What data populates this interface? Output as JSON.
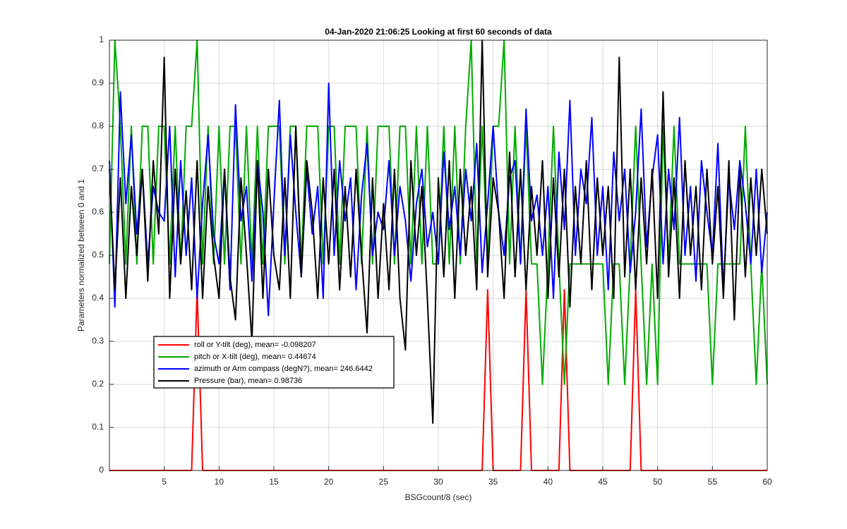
{
  "chart_data": {
    "type": "line",
    "title": "04-Jan-2020 21:06:25 Looking at first 60 seconds of data",
    "xlabel": "BSGcount/8 (sec)",
    "ylabel": "Parameters normalized between 0 and 1",
    "xlim": [
      0,
      60
    ],
    "ylim": [
      0,
      1
    ],
    "xticks": [
      5,
      10,
      15,
      20,
      25,
      30,
      35,
      40,
      45,
      50,
      55,
      60
    ],
    "yticks": [
      0,
      0.1,
      0.2,
      0.3,
      0.4,
      0.5,
      0.6,
      0.7,
      0.8,
      0.9,
      1
    ],
    "grid": true,
    "x": [
      0,
      0.5,
      1,
      1.5,
      2,
      2.5,
      3,
      3.5,
      4,
      4.5,
      5,
      5.5,
      6,
      6.5,
      7,
      7.5,
      8,
      8.5,
      9,
      9.5,
      10,
      10.5,
      11,
      11.5,
      12,
      12.5,
      13,
      13.5,
      14,
      14.5,
      15,
      15.5,
      16,
      16.5,
      17,
      17.5,
      18,
      18.5,
      19,
      19.5,
      20,
      20.5,
      21,
      21.5,
      22,
      22.5,
      23,
      23.5,
      24,
      24.5,
      25,
      25.5,
      26,
      26.5,
      27,
      27.5,
      28,
      28.5,
      29,
      29.5,
      30,
      30.5,
      31,
      31.5,
      32,
      32.5,
      33,
      33.5,
      34,
      34.5,
      35,
      35.5,
      36,
      36.5,
      37,
      37.5,
      38,
      38.5,
      39,
      39.5,
      40,
      40.5,
      41,
      41.5,
      42,
      42.5,
      43,
      43.5,
      44,
      44.5,
      45,
      45.5,
      46,
      46.5,
      47,
      47.5,
      48,
      48.5,
      49,
      49.5,
      50,
      50.5,
      51,
      51.5,
      52,
      52.5,
      53,
      53.5,
      54,
      54.5,
      55,
      55.5,
      56,
      56.5,
      57,
      57.5,
      58,
      58.5,
      59,
      59.5,
      60
    ],
    "series": [
      {
        "name": "roll or Y-tilt (deg), mean= -0.098207",
        "color": "#ff0000",
        "values": [
          0,
          0,
          0,
          0,
          0,
          0,
          0,
          0,
          0,
          0,
          0,
          0,
          0,
          0,
          0,
          0,
          0.42,
          0,
          0,
          0,
          0,
          0,
          0,
          0,
          0,
          0,
          0,
          0,
          0,
          0,
          0,
          0,
          0,
          0,
          0,
          0,
          0,
          0,
          0,
          0,
          0,
          0,
          0,
          0,
          0,
          0,
          0,
          0,
          0,
          0,
          0,
          0,
          0,
          0,
          0,
          0,
          0,
          0,
          0,
          0,
          0,
          0,
          0,
          0,
          0,
          0,
          0,
          0,
          0,
          0.42,
          0,
          0,
          0,
          0,
          0,
          0,
          0.42,
          0,
          0,
          0,
          0,
          0,
          0,
          0.42,
          0,
          0,
          0,
          0,
          0,
          0,
          0,
          0,
          0,
          0,
          0,
          0,
          0.42,
          0,
          0,
          0,
          0,
          0,
          0,
          0,
          0,
          0,
          0,
          0,
          0,
          0,
          0,
          0,
          0,
          0,
          0,
          0,
          0,
          0,
          0,
          0,
          0
        ]
      },
      {
        "name": "pitch or X-tilt (deg), mean= 0.44674",
        "color": "#00aa00",
        "values": [
          0.48,
          1.0,
          0.8,
          0.48,
          0.8,
          0.48,
          0.8,
          0.8,
          0.48,
          0.8,
          0.8,
          0.48,
          0.8,
          0.48,
          0.8,
          0.8,
          1.0,
          0.48,
          0.8,
          0.48,
          0.8,
          0.48,
          0.8,
          0.8,
          0.48,
          0.8,
          0.48,
          0.8,
          0.48,
          0.8,
          0.8,
          0.8,
          0.48,
          0.8,
          0.8,
          0.48,
          0.8,
          0.8,
          0.8,
          0.48,
          0.8,
          0.8,
          0.48,
          0.8,
          0.8,
          0.8,
          0.48,
          0.8,
          0.48,
          0.8,
          0.8,
          0.8,
          0.48,
          0.8,
          0.8,
          0.48,
          0.8,
          0.48,
          0.8,
          0.48,
          0.48,
          0.8,
          0.48,
          0.8,
          0.48,
          0.8,
          1.0,
          0.48,
          0.8,
          0.48,
          0.8,
          0.8,
          1.0,
          0.48,
          0.8,
          0.48,
          0.8,
          0.48,
          0.48,
          0.2,
          0.48,
          0.8,
          0.48,
          0.2,
          0.48,
          0.48,
          0.48,
          0.48,
          0.48,
          0.48,
          0.48,
          0.2,
          0.48,
          0.48,
          0.2,
          0.48,
          0.8,
          0.48,
          0.2,
          0.48,
          0.2,
          0.8,
          0.48,
          0.8,
          0.48,
          0.48,
          0.48,
          0.48,
          0.48,
          0.48,
          0.2,
          0.48,
          0.48,
          0.48,
          0.48,
          0.48,
          0.8,
          0.48,
          0.2,
          0.48,
          0.2
        ]
      },
      {
        "name": "azimuth or Arm compass (degN?), mean= 246.6442",
        "color": "#0000ff",
        "values": [
          0.72,
          0.38,
          0.88,
          0.62,
          0.78,
          0.55,
          0.7,
          0.48,
          0.66,
          0.6,
          0.58,
          0.8,
          0.45,
          0.72,
          0.5,
          0.68,
          0.4,
          0.62,
          0.78,
          0.55,
          0.48,
          0.7,
          0.42,
          0.85,
          0.58,
          0.66,
          0.44,
          0.72,
          0.6,
          0.36,
          0.62,
          0.86,
          0.5,
          0.78,
          0.6,
          0.45,
          0.7,
          0.55,
          0.66,
          0.4,
          0.9,
          0.5,
          0.72,
          0.58,
          0.68,
          0.42,
          0.64,
          0.76,
          0.5,
          0.6,
          0.56,
          0.72,
          0.5,
          0.66,
          0.58,
          0.44,
          0.62,
          0.7,
          0.52,
          0.6,
          0.48,
          0.74,
          0.56,
          0.66,
          0.5,
          0.7,
          0.58,
          0.76,
          0.46,
          0.62,
          0.8,
          0.6,
          0.5,
          0.68,
          0.72,
          0.48,
          0.84,
          0.58,
          0.64,
          0.5,
          0.66,
          0.4,
          0.74,
          0.56,
          0.86,
          0.5,
          0.7,
          0.62,
          0.82,
          0.5,
          0.66,
          0.42,
          0.74,
          0.58,
          0.7,
          0.46,
          0.6,
          0.84,
          0.52,
          0.68,
          0.78,
          0.48,
          0.7,
          0.56,
          0.82,
          0.5,
          0.66,
          0.44,
          0.72,
          0.6,
          0.5,
          0.76,
          0.42,
          0.68,
          0.56,
          0.72,
          0.62,
          0.48,
          0.7,
          0.46,
          0.6
        ]
      },
      {
        "name": "Pressure (bar), mean= 0.98736",
        "color": "#000000",
        "values": [
          0.7,
          0.42,
          0.68,
          0.4,
          0.66,
          0.5,
          0.7,
          0.44,
          0.72,
          0.55,
          0.96,
          0.4,
          0.7,
          0.48,
          0.65,
          0.42,
          0.72,
          0.4,
          0.66,
          0.5,
          0.4,
          0.7,
          0.45,
          0.35,
          0.68,
          0.5,
          0.3,
          0.72,
          0.4,
          0.7,
          0.5,
          0.42,
          0.68,
          0.4,
          0.8,
          0.45,
          0.72,
          0.6,
          0.4,
          0.68,
          0.48,
          0.7,
          0.42,
          0.66,
          0.45,
          0.7,
          0.5,
          0.32,
          0.68,
          0.4,
          0.62,
          0.42,
          0.7,
          0.4,
          0.28,
          0.72,
          0.5,
          0.66,
          0.4,
          0.11,
          0.68,
          0.45,
          0.72,
          0.4,
          0.7,
          0.5,
          0.66,
          0.42,
          1.0,
          0.45,
          0.68,
          0.6,
          0.4,
          0.74,
          0.45,
          0.7,
          0.42,
          0.66,
          0.5,
          0.72,
          0.4,
          0.68,
          0.45,
          0.7,
          0.38,
          0.66,
          0.48,
          0.72,
          0.42,
          0.68,
          0.5,
          0.66,
          0.4,
          0.96,
          0.45,
          0.7,
          0.42,
          0.68,
          0.48,
          0.7,
          0.4,
          0.88,
          0.45,
          0.68,
          0.4,
          0.72,
          0.5,
          0.66,
          0.42,
          0.7,
          0.48,
          0.66,
          0.4,
          0.72,
          0.35,
          0.7,
          0.45,
          0.68,
          0.5,
          0.7,
          0.55
        ]
      }
    ]
  }
}
